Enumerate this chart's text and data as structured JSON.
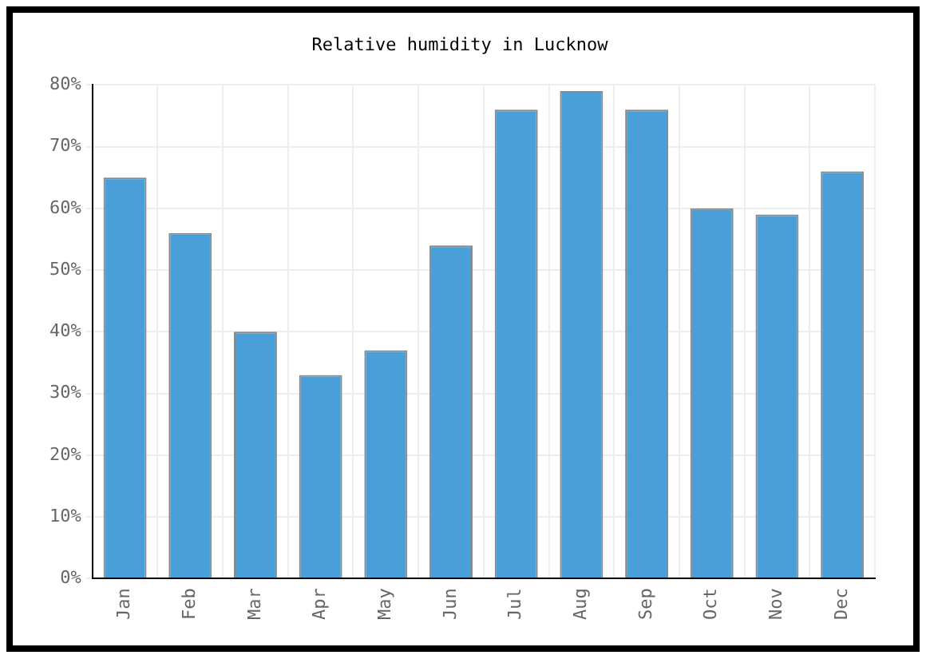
{
  "chart_data": {
    "type": "bar",
    "title": "Relative humidity in Lucknow",
    "categories": [
      "Jan",
      "Feb",
      "Mar",
      "Apr",
      "May",
      "Jun",
      "Jul",
      "Aug",
      "Sep",
      "Oct",
      "Nov",
      "Dec"
    ],
    "values": [
      65,
      56,
      40,
      33,
      37,
      54,
      76,
      79,
      76,
      60,
      59,
      66
    ],
    "color": "#4a9fd8",
    "ylim": [
      0,
      80
    ],
    "yticks": [
      {
        "value": 0,
        "label": "0%"
      },
      {
        "value": 10,
        "label": "10%"
      },
      {
        "value": 20,
        "label": "20%"
      },
      {
        "value": 30,
        "label": "30%"
      },
      {
        "value": 40,
        "label": "40%"
      },
      {
        "value": 50,
        "label": "50%"
      },
      {
        "value": 60,
        "label": "60%"
      },
      {
        "value": 70,
        "label": "70%"
      },
      {
        "value": 80,
        "label": "80%"
      }
    ],
    "grid": true,
    "legend": false
  }
}
